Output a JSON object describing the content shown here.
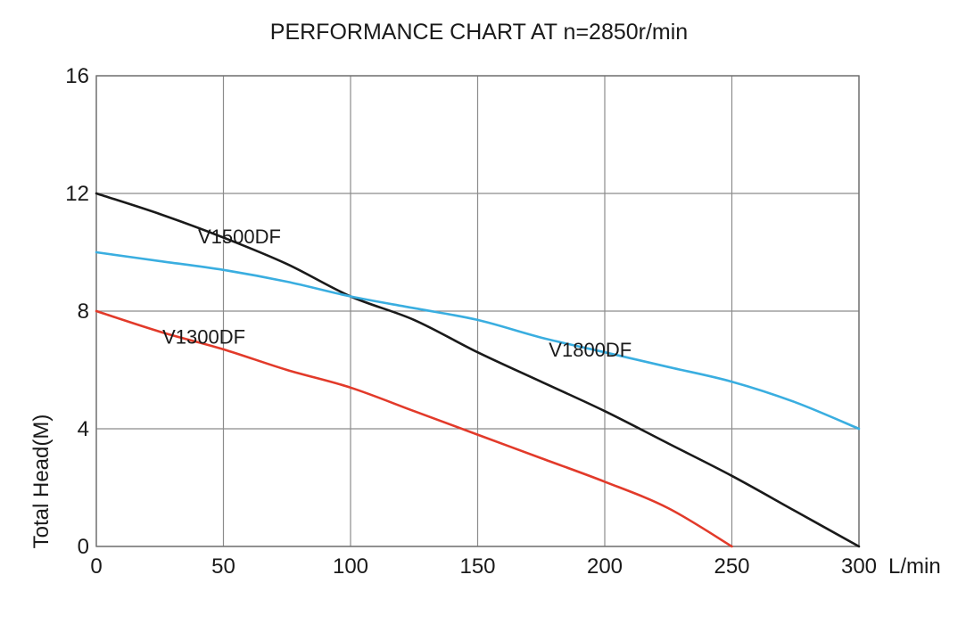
{
  "chart_data": {
    "type": "line",
    "title": "PERFORMANCE CHART AT n=2850r/min",
    "xlabel": "L/min",
    "ylabel": "Total Head(M)",
    "xlim": [
      0,
      300
    ],
    "ylim": [
      0,
      16
    ],
    "x_ticks": [
      0,
      50,
      100,
      150,
      200,
      250,
      300
    ],
    "y_ticks": [
      0,
      4,
      8,
      12,
      16
    ],
    "grid": true,
    "series": [
      {
        "name": "V1500DF",
        "color": "#1a1a1a",
        "x": [
          0,
          25,
          50,
          75,
          100,
          125,
          150,
          175,
          200,
          225,
          250,
          275,
          300
        ],
        "y": [
          12.0,
          11.3,
          10.5,
          9.6,
          8.5,
          7.7,
          6.6,
          5.6,
          4.6,
          3.5,
          2.4,
          1.2,
          0.0
        ]
      },
      {
        "name": "V1800DF",
        "color": "#3aaee0",
        "x": [
          0,
          25,
          50,
          75,
          100,
          125,
          150,
          175,
          200,
          225,
          250,
          275,
          300
        ],
        "y": [
          10.0,
          9.7,
          9.4,
          9.0,
          8.5,
          8.1,
          7.7,
          7.1,
          6.6,
          6.1,
          5.6,
          4.9,
          4.0
        ]
      },
      {
        "name": "V1300DF",
        "color": "#e23a2a",
        "x": [
          0,
          25,
          50,
          75,
          100,
          125,
          150,
          175,
          200,
          225,
          250
        ],
        "y": [
          8.0,
          7.3,
          6.7,
          6.0,
          5.4,
          4.6,
          3.8,
          3.0,
          2.2,
          1.3,
          0.0
        ]
      }
    ]
  }
}
